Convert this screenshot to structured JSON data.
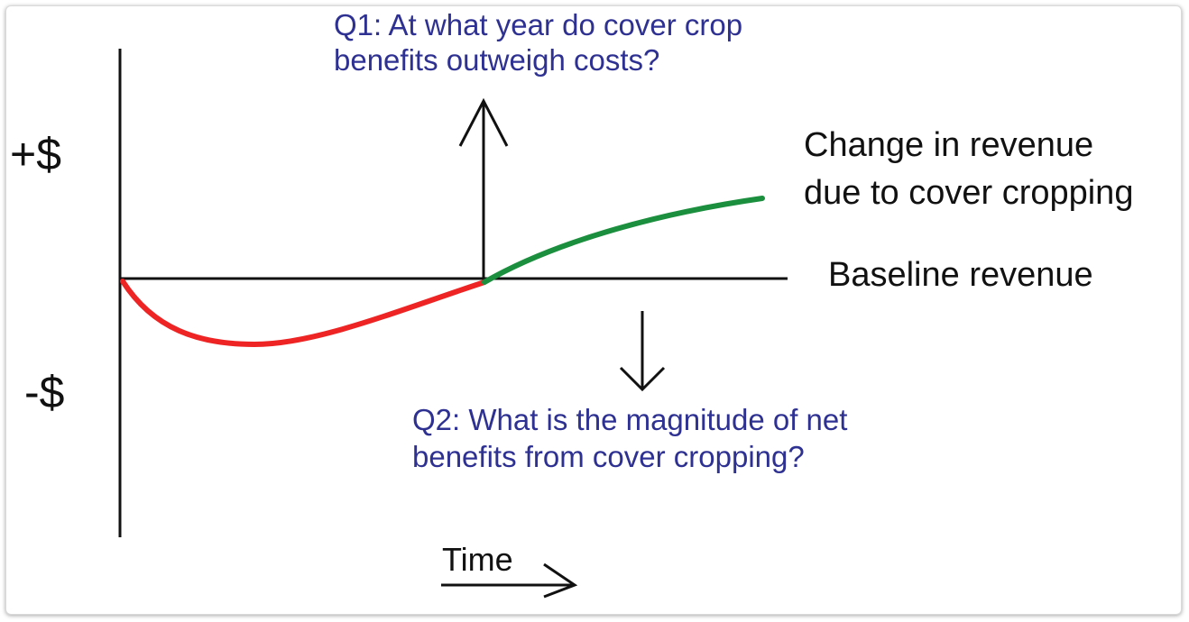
{
  "diagram": {
    "y_positive": "+$",
    "y_negative": "-$",
    "x_axis_label": "Time",
    "curve_label_line1": "Change in revenue",
    "curve_label_line2": "due to cover cropping",
    "baseline_label": "Baseline revenue",
    "q1_line1": "Q1: At what year do cover crop",
    "q1_line2": "benefits outweigh costs?",
    "q2_line1": "Q2: What is the magnitude of net",
    "q2_line2": "benefits from cover cropping?"
  },
  "colors": {
    "negative_segment": "#ee2424",
    "positive_segment": "#1b8f3e",
    "question_text": "#2e3192",
    "axes": "#111111"
  }
}
